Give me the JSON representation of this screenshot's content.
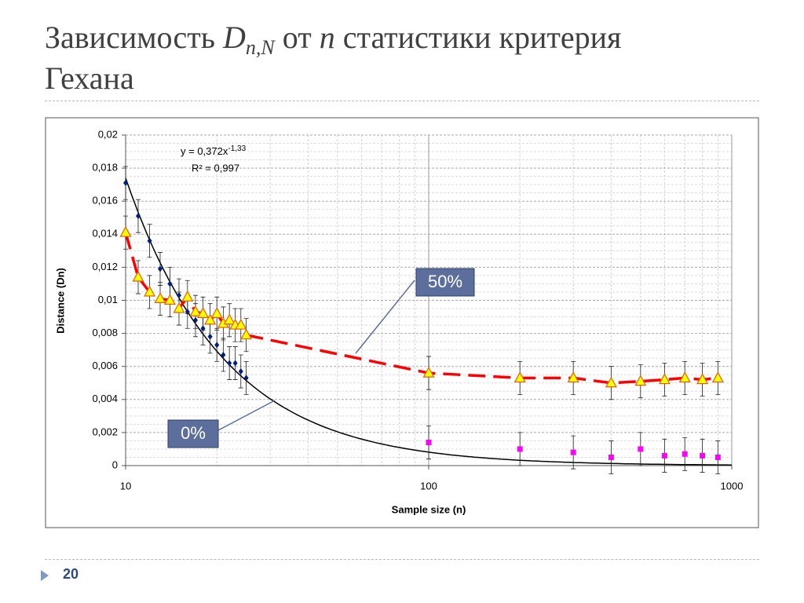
{
  "slide": {
    "title_parts": [
      "Зависимость ",
      "D",
      "n,N",
      " от ",
      "n",
      " статистики критерия",
      "Гехана"
    ],
    "page_number": "20"
  },
  "chart_data": {
    "type": "scatter",
    "xlabel": "Sample size (n)",
    "ylabel": "Distance (Dn)",
    "xscale": "log",
    "xlim": [
      10,
      1000
    ],
    "xticks": [
      10,
      100,
      1000
    ],
    "ylim": [
      0,
      0.02
    ],
    "yticks": [
      0,
      {
        "value": 0.002,
        "label": "0,002"
      },
      {
        "value": 0.004,
        "label": "0,004"
      },
      {
        "value": 0.006,
        "label": "0,006"
      },
      {
        "value": 0.008,
        "label": "0,008"
      },
      {
        "value": 0.01,
        "label": "0,01"
      },
      {
        "value": 0.012,
        "label": "0,012"
      },
      {
        "value": 0.014,
        "label": "0,014"
      },
      {
        "value": 0.016,
        "label": "0,016"
      },
      {
        "value": 0.018,
        "label": "0,018"
      },
      {
        "value": 0.02,
        "label": "0,02"
      }
    ],
    "grid": true,
    "minor_grid": true,
    "series": [
      {
        "color": "#00207a",
        "marker": "diamond",
        "x": [
          10,
          11,
          12,
          13,
          14,
          15,
          16,
          17,
          18,
          19,
          20,
          21,
          22,
          23,
          24,
          25
        ],
        "values": [
          0.0171,
          0.0151,
          0.0136,
          0.0119,
          0.011,
          0.0103,
          0.0093,
          0.0088,
          0.0083,
          0.0078,
          0.0073,
          0.0067,
          0.0062,
          0.0062,
          0.0057,
          0.0053
        ],
        "errors": [
          0.001,
          0.001,
          0.001,
          0.001,
          0.001,
          0.001,
          0.001,
          0.001,
          0.001,
          0.001,
          0.001,
          0.001,
          0.001,
          0.001,
          0.001,
          0.001
        ]
      },
      {
        "color": "#ffff00",
        "edge_color": "#e06010",
        "marker": "triangle",
        "line_color": "#ff0000",
        "line_dash": true,
        "x": [
          10,
          11,
          12,
          13,
          14,
          15,
          16,
          17,
          18,
          19,
          20,
          21,
          22,
          23,
          24,
          25,
          100,
          200,
          300,
          400,
          500,
          600,
          700,
          800,
          900
        ],
        "values": [
          0.0141,
          0.0114,
          0.0105,
          0.0101,
          0.01,
          0.0095,
          0.0102,
          0.0093,
          0.0092,
          0.0088,
          0.0092,
          0.0086,
          0.0088,
          0.0085,
          0.0085,
          0.0079,
          0.0056,
          0.0053,
          0.0053,
          0.005,
          0.0051,
          0.0052,
          0.0053,
          0.0052,
          0.0053
        ],
        "errors": [
          0.001,
          0.001,
          0.001,
          0.001,
          0.001,
          0.001,
          0.001,
          0.001,
          0.001,
          0.001,
          0.001,
          0.001,
          0.001,
          0.001,
          0.001,
          0.001,
          0.001,
          0.001,
          0.001,
          0.001,
          0.001,
          0.001,
          0.001,
          0.001,
          0.001
        ]
      },
      {
        "color": "#ff00ff",
        "marker": "square",
        "x": [
          100,
          200,
          300,
          400,
          500,
          600,
          700,
          800,
          900
        ],
        "values": [
          0.0014,
          0.001,
          0.0008,
          0.0005,
          0.001,
          0.0006,
          0.0007,
          0.0006,
          0.0005
        ],
        "errors": [
          0.001,
          0.001,
          0.001,
          0.001,
          0.001,
          0.001,
          0.001,
          0.001,
          0.001
        ]
      }
    ],
    "trendline": {
      "coefficient": 0.372,
      "exponent": -1.33,
      "color": "#000000",
      "equation": "y = 0,372x",
      "equation_exponent": "-1,33",
      "r2": "R² = 0,997"
    },
    "annotations": [
      {
        "text": "50%"
      },
      {
        "text": "0%"
      }
    ]
  }
}
